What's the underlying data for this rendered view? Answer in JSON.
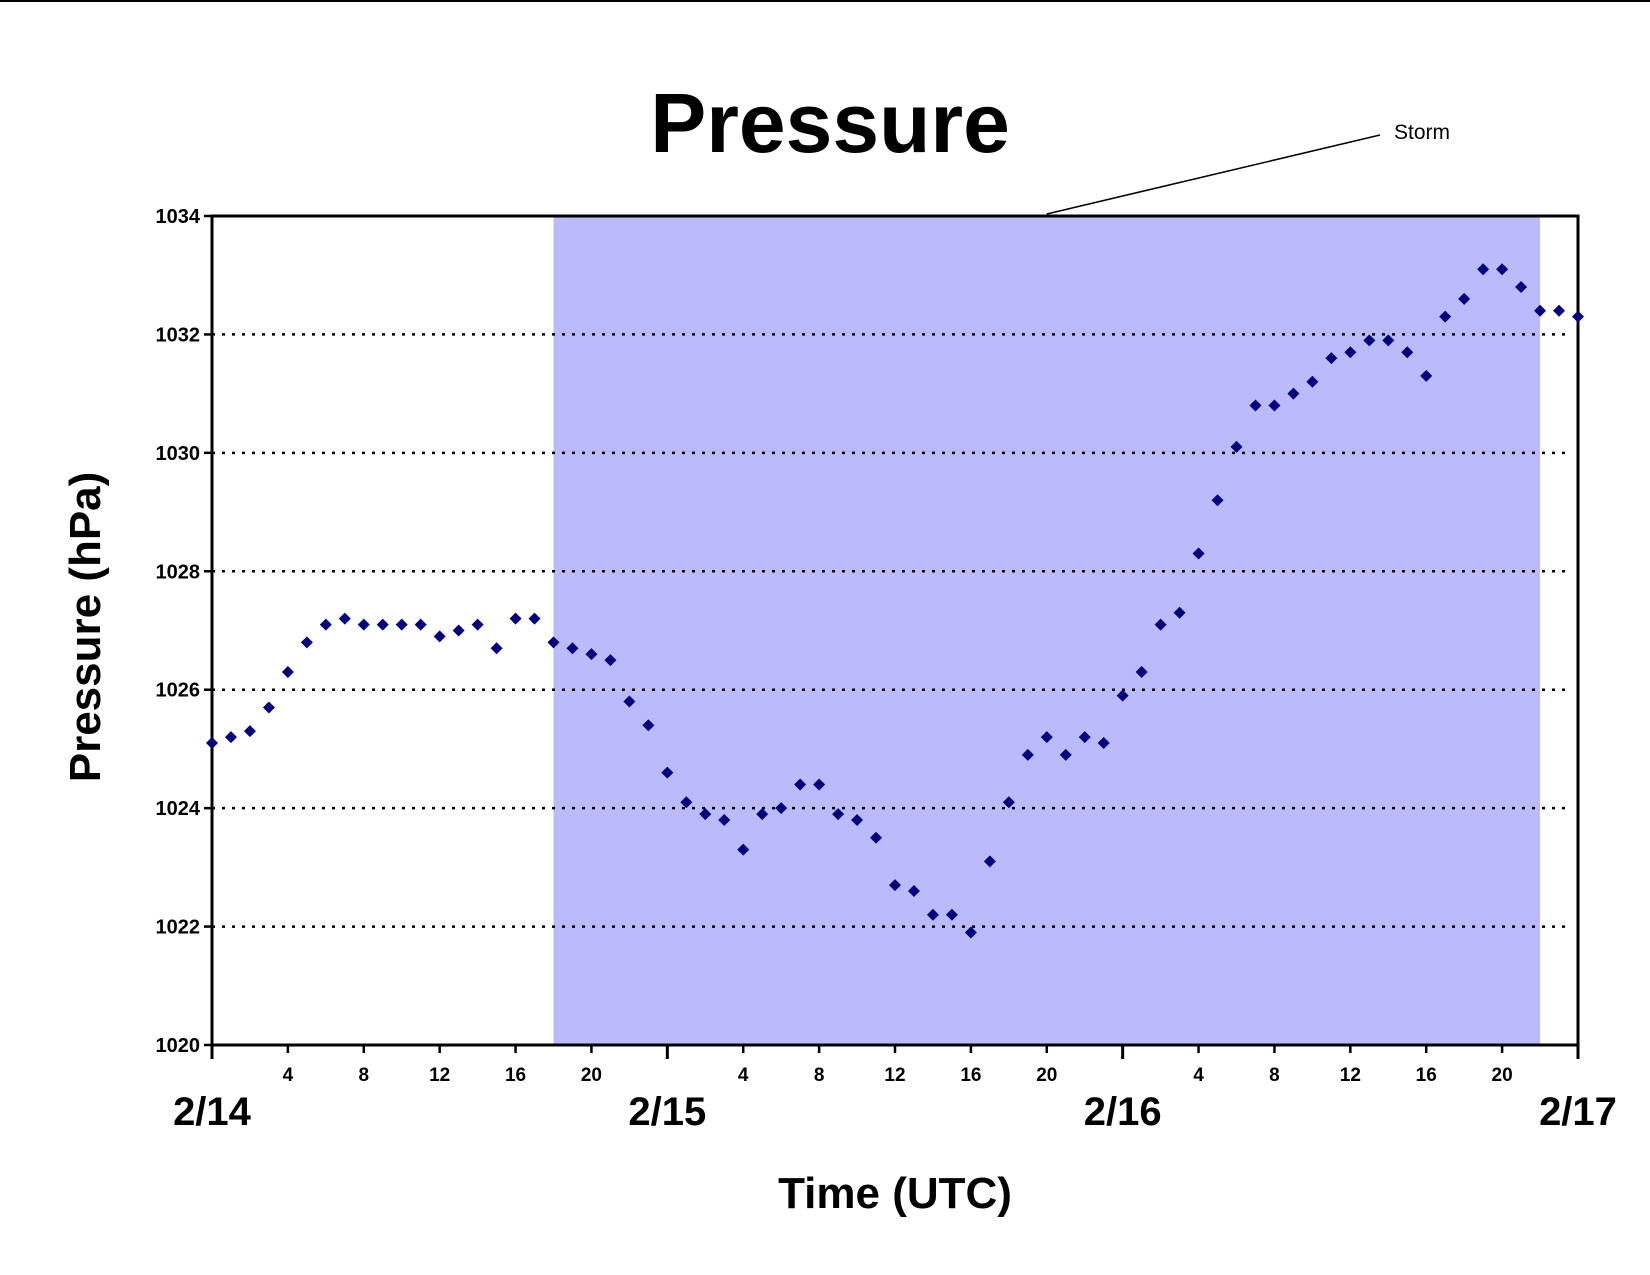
{
  "chart_data": {
    "type": "scatter",
    "title": "Pressure",
    "xlabel": "Time (UTC)",
    "ylabel": "Pressure (hPa)",
    "x_unit": "hours since 2/14 00 UTC",
    "xlim": [
      0,
      72
    ],
    "ylim": [
      1020,
      1034
    ],
    "yticks": [
      1020,
      1022,
      1024,
      1026,
      1028,
      1030,
      1032,
      1034
    ],
    "hour_ticks": [
      {
        "x": 4,
        "label": "4"
      },
      {
        "x": 8,
        "label": "8"
      },
      {
        "x": 12,
        "label": "12"
      },
      {
        "x": 16,
        "label": "16"
      },
      {
        "x": 20,
        "label": "20"
      },
      {
        "x": 28,
        "label": "4"
      },
      {
        "x": 32,
        "label": "8"
      },
      {
        "x": 36,
        "label": "12"
      },
      {
        "x": 40,
        "label": "16"
      },
      {
        "x": 44,
        "label": "20"
      },
      {
        "x": 52,
        "label": "4"
      },
      {
        "x": 56,
        "label": "8"
      },
      {
        "x": 60,
        "label": "12"
      },
      {
        "x": 64,
        "label": "16"
      },
      {
        "x": 68,
        "label": "20"
      }
    ],
    "day_labels": [
      {
        "x": 0,
        "label": "2/14"
      },
      {
        "x": 24,
        "label": "2/15"
      },
      {
        "x": 48,
        "label": "2/16"
      },
      {
        "x": 72,
        "label": "2/17"
      }
    ],
    "grid": "horizontal-dotted",
    "marker_color": "#000080",
    "shade_color": "#bbbbfb",
    "storm_period": {
      "label": "Storm",
      "x_start": 18,
      "x_end": 70
    },
    "series": [
      {
        "x": [
          0,
          1,
          2,
          3,
          4,
          5,
          6,
          7,
          8,
          9,
          10,
          11,
          12,
          13,
          14,
          15,
          16,
          17,
          18,
          19,
          20,
          21,
          22,
          23,
          24,
          25,
          26,
          27,
          28,
          29,
          30,
          31,
          32,
          33,
          34,
          35,
          36,
          37,
          38,
          39,
          40,
          41,
          42,
          43,
          44,
          45,
          46,
          47,
          48,
          49,
          50,
          51,
          52,
          53,
          54,
          55,
          56,
          57,
          58,
          59,
          60,
          61,
          62,
          63,
          64,
          65,
          66,
          67,
          68,
          69,
          70,
          71,
          72
        ],
        "y": [
          1025.1,
          1025.2,
          1025.3,
          1025.7,
          1026.3,
          1026.8,
          1027.1,
          1027.2,
          1027.1,
          1027.1,
          1027.1,
          1027.1,
          1026.9,
          1027.0,
          1027.1,
          1026.7,
          1027.2,
          1027.2,
          1026.8,
          1026.7,
          1026.6,
          1026.5,
          1025.8,
          1025.4,
          1024.6,
          1024.1,
          1023.9,
          1023.8,
          1023.3,
          1023.9,
          1024.0,
          1024.4,
          1024.4,
          1023.9,
          1023.8,
          1023.5,
          1022.7,
          1022.6,
          1022.2,
          1022.2,
          1021.9,
          1023.1,
          1024.1,
          1024.9,
          1025.2,
          1024.9,
          1025.2,
          1025.1,
          1025.9,
          1026.3,
          1027.1,
          1027.3,
          1028.3,
          1029.2,
          1030.1,
          1030.8,
          1030.8,
          1031.0,
          1031.2,
          1031.6,
          1031.7,
          1031.9,
          1031.9,
          1031.7,
          1031.3,
          1032.3,
          1032.6,
          1033.1,
          1033.1,
          1032.8,
          1032.4,
          1032.4,
          1032.3
        ]
      }
    ]
  }
}
